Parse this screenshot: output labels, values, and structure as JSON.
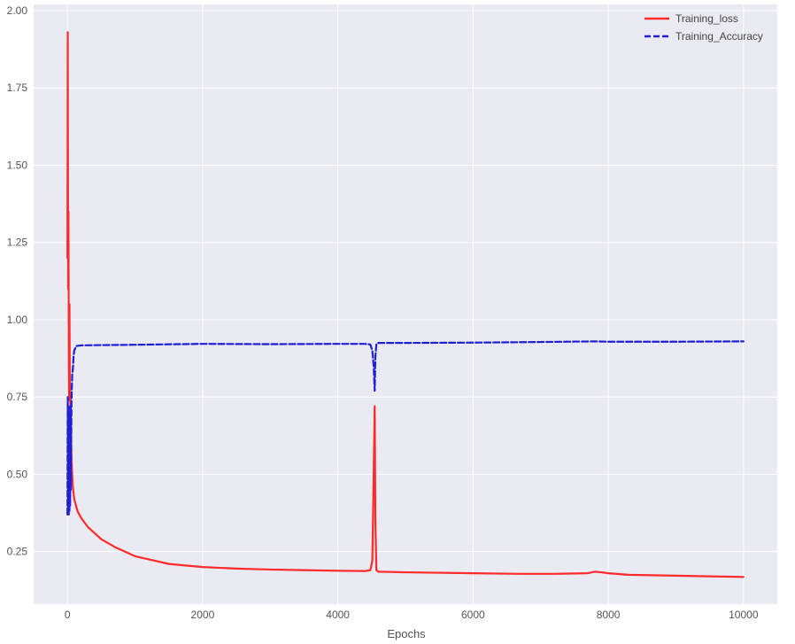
{
  "chart_data": {
    "type": "line",
    "title": "",
    "xlabel": "Epochs",
    "ylabel": "",
    "xlim": [
      -500,
      10500
    ],
    "ylim": [
      0.08,
      2.02
    ],
    "xticks": [
      0,
      2000,
      4000,
      6000,
      8000,
      10000
    ],
    "xtick_labels": [
      "0",
      "2000",
      "4000",
      "6000",
      "8000",
      "10000"
    ],
    "yticks": [
      0.25,
      0.5,
      0.75,
      1.0,
      1.25,
      1.5,
      1.75,
      2.0
    ],
    "ytick_labels": [
      "0.25",
      "0.50",
      "0.75",
      "1.00",
      "1.25",
      "1.50",
      "1.75",
      "2.00"
    ],
    "grid": true,
    "legend_position": "top-right",
    "series": [
      {
        "name": "Training_loss",
        "color": "#ff2a2a",
        "style": "solid",
        "x": [
          0,
          5,
          10,
          15,
          20,
          25,
          30,
          35,
          40,
          50,
          60,
          70,
          80,
          100,
          150,
          200,
          300,
          400,
          500,
          700,
          1000,
          1500,
          2000,
          2500,
          3000,
          3500,
          4000,
          4400,
          4480,
          4510,
          4530,
          4545,
          4555,
          4570,
          4600,
          5000,
          6000,
          6700,
          7200,
          7700,
          7800,
          7900,
          8000,
          8300,
          9000,
          9500,
          10000
        ],
        "y": [
          1.2,
          1.93,
          1.1,
          1.35,
          0.85,
          0.74,
          1.05,
          0.8,
          0.75,
          0.68,
          0.55,
          0.5,
          0.46,
          0.42,
          0.38,
          0.36,
          0.33,
          0.31,
          0.29,
          0.265,
          0.235,
          0.21,
          0.2,
          0.195,
          0.192,
          0.19,
          0.188,
          0.187,
          0.19,
          0.22,
          0.5,
          0.72,
          0.35,
          0.19,
          0.185,
          0.183,
          0.18,
          0.178,
          0.178,
          0.18,
          0.185,
          0.183,
          0.18,
          0.175,
          0.172,
          0.17,
          0.168
        ]
      },
      {
        "name": "Training_Accuracy",
        "color": "#1f1fd6",
        "style": "dashed",
        "x": [
          0,
          5,
          10,
          15,
          20,
          25,
          30,
          35,
          40,
          45,
          50,
          60,
          70,
          80,
          90,
          100,
          130,
          200,
          500,
          1000,
          2000,
          3000,
          4000,
          4400,
          4480,
          4510,
          4530,
          4545,
          4555,
          4570,
          4600,
          5000,
          6000,
          7000,
          7800,
          8000,
          9000,
          10000
        ],
        "y": [
          0.37,
          0.75,
          0.38,
          0.72,
          0.37,
          0.7,
          0.38,
          0.65,
          0.4,
          0.72,
          0.45,
          0.74,
          0.82,
          0.84,
          0.88,
          0.9,
          0.915,
          0.917,
          0.918,
          0.919,
          0.922,
          0.921,
          0.922,
          0.922,
          0.92,
          0.9,
          0.85,
          0.77,
          0.88,
          0.922,
          0.925,
          0.925,
          0.926,
          0.928,
          0.93,
          0.929,
          0.929,
          0.93
        ]
      }
    ]
  }
}
